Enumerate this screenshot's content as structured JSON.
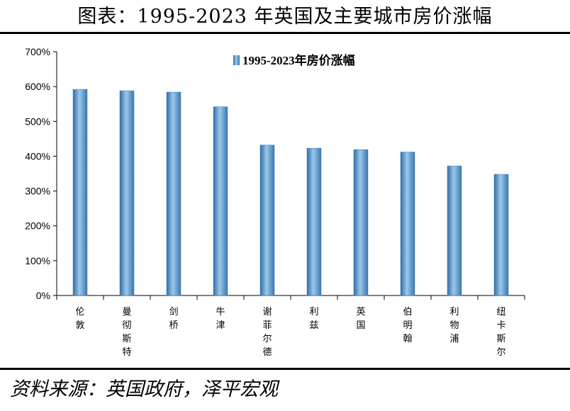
{
  "header": {
    "title": "图表：1995-2023 年英国及主要城市房价涨幅"
  },
  "footer": {
    "source": "资料来源：英国政府，泽平宏观"
  },
  "chart_data": {
    "type": "bar",
    "title": "图表：1995-2023 年英国及主要城市房价涨幅",
    "xlabel": "",
    "ylabel": "",
    "ylim": [
      0,
      700
    ],
    "yticks": [
      "0%",
      "100%",
      "200%",
      "300%",
      "400%",
      "500%",
      "600%",
      "700%"
    ],
    "ytick_values": [
      0,
      100,
      200,
      300,
      400,
      500,
      600,
      700
    ],
    "grid": false,
    "legend_position": "top-center",
    "categories": [
      "伦敦",
      "曼彻斯特",
      "剑桥",
      "牛津",
      "谢菲尔德",
      "利兹",
      "英国",
      "伯明翰",
      "利物浦",
      "纽卡斯尔"
    ],
    "series": [
      {
        "name": "1995-2023年房价涨幅",
        "color": "#4f8fc4",
        "values": [
          592,
          588,
          584,
          542,
          432,
          423,
          419,
          412,
          372,
          348
        ]
      }
    ]
  }
}
